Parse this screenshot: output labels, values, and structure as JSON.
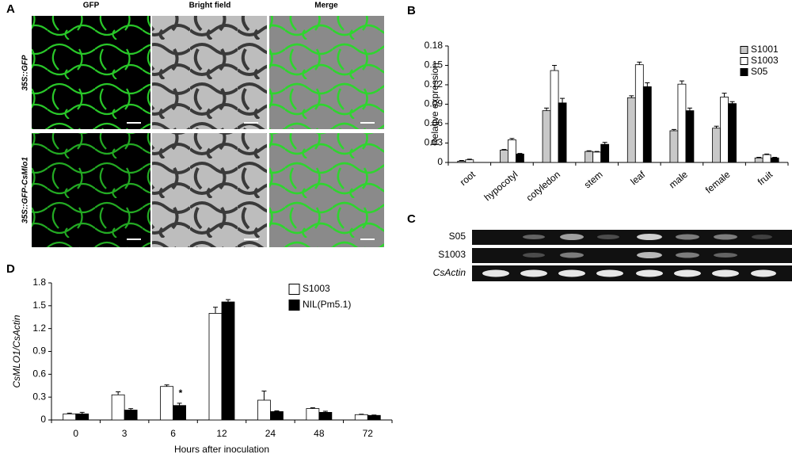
{
  "panel_labels": [
    "A",
    "B",
    "C",
    "D"
  ],
  "microscopy": {
    "columns": [
      "GFP",
      "Bright field",
      "Merge"
    ],
    "rows": [
      "35S::GFP",
      "35S::GFP-CsMlo1"
    ]
  },
  "gel": {
    "rows": [
      "S05",
      "S1003",
      "CsActin"
    ]
  },
  "chart_data": [
    {
      "type": "bar",
      "ylabel": "Relative expression",
      "categories": [
        "root",
        "hypocotyl",
        "cotyledon",
        "stem",
        "leaf",
        "male",
        "female",
        "fruit"
      ],
      "series": [
        {
          "name": "S1001",
          "color": "#c8c8c8",
          "values": [
            0.002,
            0.019,
            0.08,
            0.017,
            0.1,
            0.049,
            0.053,
            0.007
          ],
          "errors": [
            0.001,
            0.001,
            0.004,
            0.001,
            0.003,
            0.002,
            0.003,
            0.001
          ]
        },
        {
          "name": "S1003",
          "color": "#ffffff",
          "values": [
            0.004,
            0.035,
            0.142,
            0.016,
            0.151,
            0.121,
            0.101,
            0.012
          ],
          "errors": [
            0.001,
            0.002,
            0.008,
            0.001,
            0.004,
            0.005,
            0.006,
            0.001
          ]
        },
        {
          "name": "S05",
          "color": "#000000",
          "values": [
            0,
            0.013,
            0.092,
            0.028,
            0.117,
            0.08,
            0.091,
            0.007
          ],
          "errors": [
            0,
            0.001,
            0.007,
            0.003,
            0.006,
            0.004,
            0.003,
            0.001
          ]
        }
      ],
      "ylim": [
        0,
        0.18
      ],
      "yticks": [
        0,
        0.03,
        0.06,
        0.09,
        0.12,
        0.15,
        0.18
      ],
      "legend": "upper right"
    },
    {
      "type": "bar",
      "ylabel": "CsMLO1/CsActin",
      "xlabel": "Hours after inoculation",
      "categories": [
        "0",
        "3",
        "6",
        "12",
        "24",
        "48",
        "72"
      ],
      "series": [
        {
          "name": "S1003",
          "color": "#ffffff",
          "values": [
            0.08,
            0.33,
            0.44,
            1.4,
            0.26,
            0.15,
            0.07
          ],
          "errors": [
            0.01,
            0.04,
            0.02,
            0.08,
            0.12,
            0.01,
            0.005
          ]
        },
        {
          "name": "NIL(Pm5.1)",
          "color": "#000000",
          "values": [
            0.08,
            0.13,
            0.19,
            1.55,
            0.11,
            0.1,
            0.06
          ],
          "errors": [
            0.02,
            0.02,
            0.03,
            0.03,
            0.01,
            0.015,
            0.005
          ]
        }
      ],
      "annotation": "*",
      "ylim": [
        0,
        1.8
      ],
      "yticks": [
        0,
        0.3,
        0.6,
        0.9,
        1.2,
        1.5,
        1.8
      ],
      "legend": "upper right"
    }
  ]
}
